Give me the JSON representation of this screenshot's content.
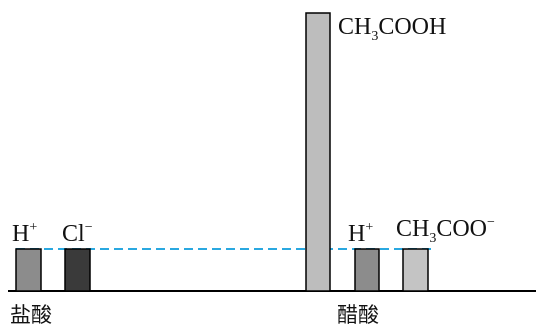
{
  "diagram": {
    "groups": [
      {
        "name": "盐酸",
        "species": [
          {
            "main": "H",
            "sup": "+",
            "relative_amount": "low"
          },
          {
            "main": "Cl",
            "sup": "−",
            "relative_amount": "low"
          }
        ]
      },
      {
        "name": "醋酸",
        "species": [
          {
            "main": "CH",
            "sub": "3",
            "tail": "COOH",
            "relative_amount": "high"
          },
          {
            "main": "H",
            "sup": "+",
            "relative_amount": "low"
          },
          {
            "main": "CH",
            "sub": "3",
            "tail": "COO",
            "sup": "−",
            "relative_amount": "low"
          }
        ]
      }
    ],
    "reference_line": {
      "style": "dashed",
      "color": "#2aa8e0"
    },
    "colors": {
      "h_plus": "#8c8c8c",
      "cl_minus": "#3a3a3a",
      "ch3cooh": "#bdbdbd",
      "ch3coo_minus": "#c4c4c4",
      "outline": "#000000"
    }
  }
}
